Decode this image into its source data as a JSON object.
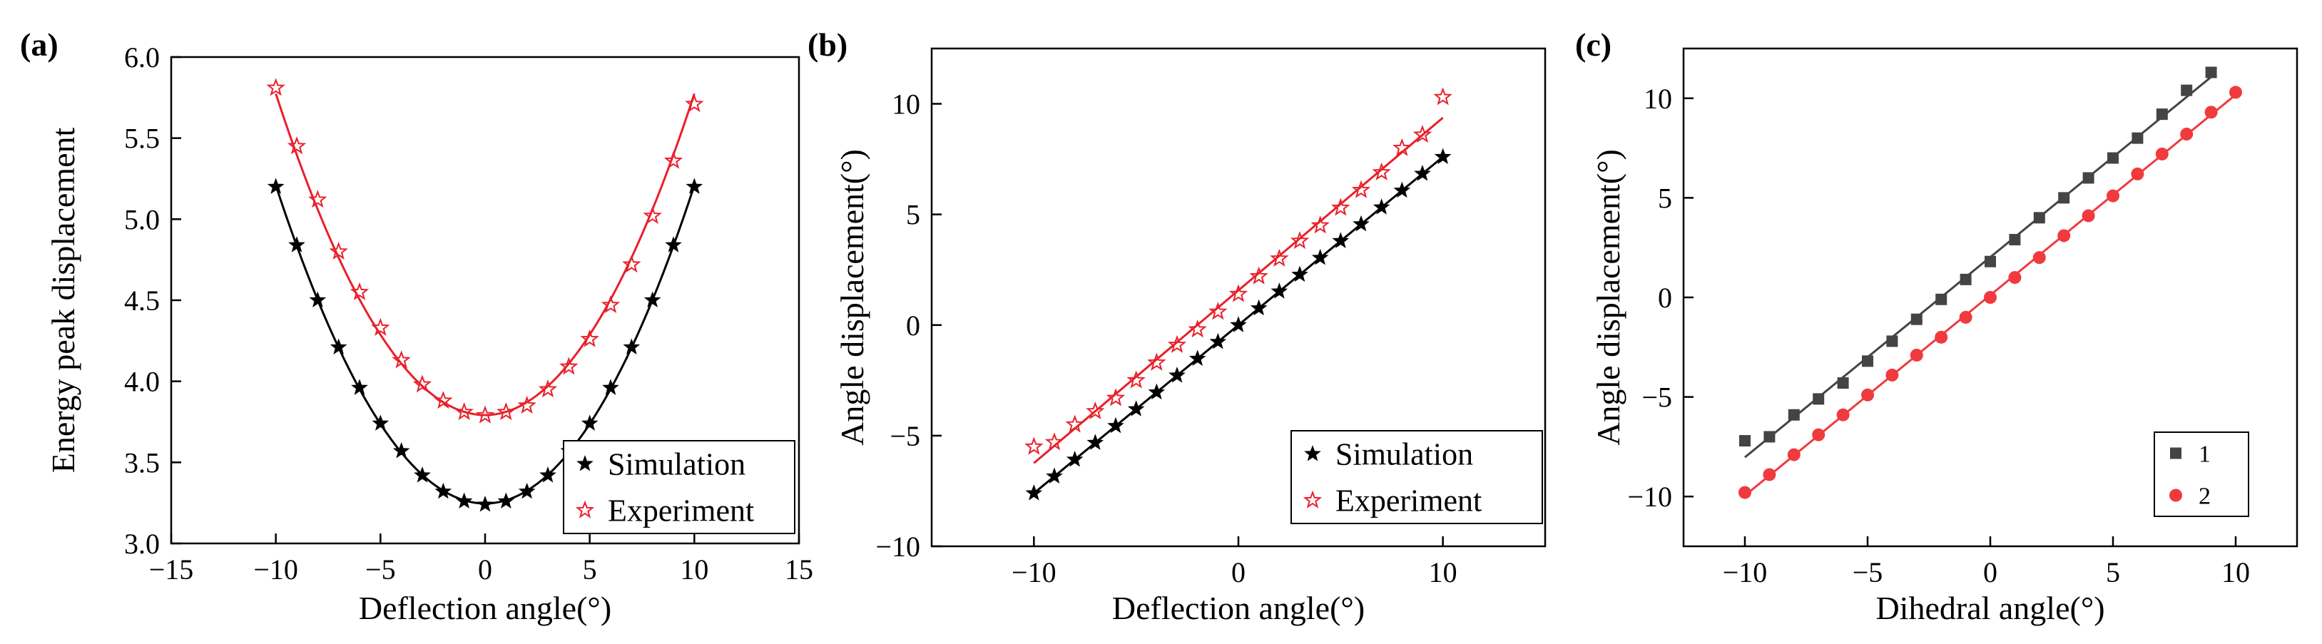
{
  "chart_data": [
    {
      "type": "scatter",
      "panel_label": "(a)",
      "xlabel": "Deflection angle(°)",
      "ylabel": "Energy peak displacement",
      "xlim": [
        -15,
        15
      ],
      "ylim": [
        3.0,
        6.0
      ],
      "x_ticks": [
        "−15",
        "−10",
        "−5",
        "0",
        "5",
        "10",
        "15"
      ],
      "x_tick_values": [
        -15,
        -10,
        -5,
        0,
        5,
        10,
        15
      ],
      "y_ticks": [
        "3.0",
        "3.5",
        "4.0",
        "4.5",
        "5.0",
        "5.5",
        "6.0"
      ],
      "y_tick_values": [
        3.0,
        3.5,
        4.0,
        4.5,
        5.0,
        5.5,
        6.0
      ],
      "legend_position": "bottom-right",
      "series": [
        {
          "name": "Simulation",
          "color": "#000000",
          "marker": "filled-star",
          "fit": "quadratic",
          "x": [
            -10,
            -9,
            -8,
            -7,
            -6,
            -5,
            -4,
            -3,
            -2,
            -1,
            0,
            1,
            2,
            3,
            4,
            5,
            6,
            7,
            8,
            9,
            10
          ],
          "y": [
            5.2,
            4.84,
            4.5,
            4.21,
            3.96,
            3.74,
            3.57,
            3.42,
            3.32,
            3.26,
            3.24,
            3.26,
            3.32,
            3.42,
            3.57,
            3.74,
            3.96,
            4.21,
            4.5,
            4.84,
            5.2
          ]
        },
        {
          "name": "Experiment",
          "color": "#e8202a",
          "marker": "open-star",
          "fit": "quadratic",
          "x": [
            -10,
            -9,
            -8,
            -7,
            -6,
            -5,
            -4,
            -3,
            -2,
            -1,
            0,
            1,
            2,
            3,
            4,
            5,
            6,
            7,
            8,
            9,
            10
          ],
          "y": [
            5.81,
            5.45,
            5.12,
            4.8,
            4.55,
            4.33,
            4.13,
            3.98,
            3.88,
            3.81,
            3.79,
            3.81,
            3.85,
            3.95,
            4.09,
            4.26,
            4.47,
            4.72,
            5.02,
            5.36,
            5.71
          ]
        }
      ]
    },
    {
      "type": "scatter",
      "panel_label": "(b)",
      "xlabel": "Deflection angle(°)",
      "ylabel": "Angle displacement(°)",
      "xlim": [
        -15,
        15
      ],
      "ylim": [
        -10,
        12.5
      ],
      "x_ticks": [
        "−10",
        "0",
        "10"
      ],
      "x_tick_values": [
        -10,
        0,
        10
      ],
      "y_ticks": [
        "−10",
        "−5",
        "0",
        "5",
        "10"
      ],
      "y_tick_values": [
        -10,
        -5,
        0,
        5,
        10
      ],
      "legend_position": "bottom-right",
      "series": [
        {
          "name": "Simulation",
          "color": "#000000",
          "marker": "filled-star",
          "fit": "linear",
          "x": [
            -10,
            -9,
            -8,
            -7,
            -6,
            -5,
            -4,
            -3,
            -2,
            -1,
            0,
            1,
            2,
            3,
            4,
            5,
            6,
            7,
            8,
            9,
            10
          ],
          "y": [
            -7.6,
            -6.84,
            -6.08,
            -5.32,
            -4.56,
            -3.8,
            -3.04,
            -2.28,
            -1.52,
            -0.76,
            0.0,
            0.76,
            1.52,
            2.28,
            3.04,
            3.8,
            4.56,
            5.32,
            6.08,
            6.84,
            7.6
          ]
        },
        {
          "name": "Experiment",
          "color": "#e8202a",
          "marker": "open-star",
          "fit": "linear",
          "x": [
            -10,
            -9,
            -8,
            -7,
            -6,
            -5,
            -4,
            -3,
            -2,
            -1,
            0,
            1,
            2,
            3,
            4,
            5,
            6,
            7,
            8,
            9,
            10
          ],
          "y": [
            -5.5,
            -5.3,
            -4.5,
            -3.9,
            -3.3,
            -2.5,
            -1.7,
            -0.9,
            -0.2,
            0.6,
            1.4,
            2.2,
            3.0,
            3.8,
            4.5,
            5.3,
            6.1,
            6.9,
            8.0,
            8.6,
            10.3
          ]
        }
      ]
    },
    {
      "type": "scatter",
      "panel_label": "(c)",
      "xlabel": "Dihedral angle(°)",
      "ylabel": "Angle displacement(°)",
      "xlim": [
        -12.5,
        12.5
      ],
      "ylim": [
        -12.5,
        12.5
      ],
      "x_ticks": [
        "−10",
        "−5",
        "0",
        "5",
        "10"
      ],
      "x_tick_values": [
        -10,
        -5,
        0,
        5,
        10
      ],
      "y_ticks": [
        "−10",
        "−5",
        "0",
        "5",
        "10"
      ],
      "y_tick_values": [
        -10,
        -5,
        0,
        5,
        10
      ],
      "legend_position": "bottom-right",
      "series": [
        {
          "name": "1",
          "color": "#444444",
          "marker": "square",
          "fit": "linear",
          "x": [
            -10,
            -9,
            -8,
            -7,
            -6,
            -5,
            -4,
            -3,
            -2,
            -1,
            0,
            1,
            2,
            3,
            4,
            5,
            6,
            7,
            8,
            9
          ],
          "y": [
            -7.2,
            -7.0,
            -5.9,
            -5.1,
            -4.3,
            -3.2,
            -2.2,
            -1.1,
            -0.1,
            0.9,
            1.8,
            2.9,
            4.0,
            5.0,
            6.0,
            7.0,
            8.0,
            9.2,
            10.4,
            11.3
          ]
        },
        {
          "name": "2",
          "color": "#f03a3e",
          "marker": "circle",
          "fit": "linear",
          "x": [
            -10,
            -9,
            -8,
            -7,
            -6,
            -5,
            -4,
            -3,
            -2,
            -1,
            0,
            1,
            2,
            3,
            4,
            5,
            6,
            7,
            8,
            9,
            10
          ],
          "y": [
            -9.8,
            -8.9,
            -7.9,
            -6.9,
            -5.9,
            -4.9,
            -3.9,
            -2.9,
            -2.0,
            -1.0,
            0.0,
            1.0,
            2.0,
            3.1,
            4.1,
            5.1,
            6.2,
            7.2,
            8.2,
            9.3,
            10.3
          ]
        }
      ]
    }
  ]
}
